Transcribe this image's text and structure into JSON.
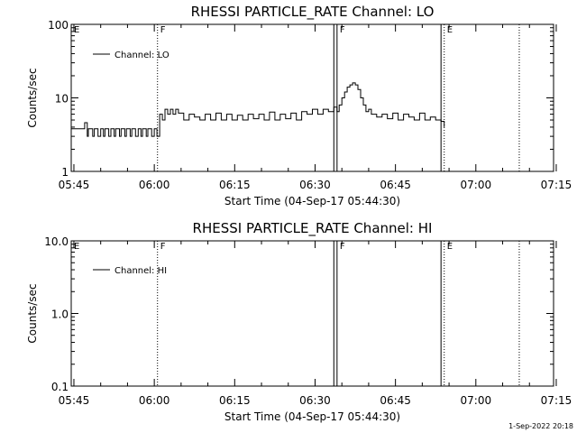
{
  "footer": {
    "timestamp": "1-Sep-2022 20:18"
  },
  "chart_data": [
    {
      "type": "line",
      "title": "RHESSI PARTICLE_RATE Channel: LO",
      "xlabel": "Start Time (04-Sep-17 05:44:30)",
      "ylabel": "Counts/sec",
      "yscale": "log",
      "ylim": [
        1,
        100
      ],
      "yticks": [
        1,
        10,
        100
      ],
      "ytick_labels": [
        "1",
        "10",
        "100"
      ],
      "xlim_minutes": [
        0,
        90
      ],
      "xticks_minutes": [
        0.5,
        15.5,
        30.5,
        45.5,
        60.5,
        75.5,
        90.5
      ],
      "xtick_labels": [
        "05:45",
        "06:00",
        "06:15",
        "06:30",
        "06:45",
        "07:00",
        "07:15"
      ],
      "legend": "Channel: LO",
      "legend_position": "top-left",
      "markers": [
        {
          "label": "E",
          "t_minutes": 0,
          "style": "dotted"
        },
        {
          "label": "F",
          "t_minutes": 16.1,
          "style": "dotted"
        },
        {
          "label": "",
          "t_minutes": 49.0,
          "style": "solid"
        },
        {
          "label": "F",
          "t_minutes": 49.6,
          "style": "solid"
        },
        {
          "label": "",
          "t_minutes": 69.0,
          "style": "solid"
        },
        {
          "label": "E",
          "t_minutes": 69.6,
          "style": "dotted"
        },
        {
          "label": "",
          "t_minutes": 83.6,
          "style": "dotted"
        }
      ],
      "series": [
        {
          "name": "Channel: LO",
          "x": [
            0,
            2,
            2.5,
            3,
            3.2,
            4,
            4.3,
            5,
            5.5,
            6,
            6.3,
            7,
            7.4,
            8,
            8.3,
            9,
            9.3,
            10,
            10.3,
            11,
            11.3,
            12,
            12.5,
            13,
            13.3,
            14,
            14.3,
            15,
            15.5,
            16,
            16.2,
            16.5,
            17,
            17.5,
            18,
            18.5,
            19,
            19.5,
            20,
            21,
            22,
            23,
            24,
            25,
            26,
            27,
            28,
            29,
            30,
            31,
            32,
            33,
            34,
            35,
            36,
            37,
            38,
            39,
            40,
            41,
            42,
            43,
            44,
            45,
            46,
            47,
            48,
            49,
            49.6,
            50,
            50.5,
            51,
            51.5,
            52,
            52.5,
            53,
            53.5,
            54,
            54.5,
            55,
            55.5,
            56,
            57,
            58,
            59,
            60,
            61,
            62,
            63,
            64,
            65,
            66,
            67,
            68,
            69,
            69.6
          ],
          "y": [
            3.8,
            3.8,
            4.6,
            3.0,
            3.8,
            3.0,
            3.8,
            3.0,
            3.8,
            3.0,
            3.8,
            3.0,
            3.8,
            3.0,
            3.8,
            3.0,
            3.8,
            3.0,
            3.8,
            3.0,
            3.8,
            3.0,
            3.8,
            3.0,
            3.8,
            3.0,
            3.8,
            3.0,
            3.8,
            3.0,
            3.0,
            6.0,
            5.0,
            7.0,
            6.0,
            7.0,
            6.0,
            7.0,
            6.2,
            5.0,
            6.0,
            5.5,
            5.0,
            6.0,
            5.0,
            6.2,
            5.0,
            6.0,
            5.0,
            5.8,
            5.0,
            6.0,
            5.2,
            6.0,
            5.0,
            6.4,
            5.0,
            6.0,
            5.2,
            6.2,
            5.0,
            6.5,
            6.0,
            7.0,
            6.0,
            7.0,
            6.5,
            7.5,
            6.5,
            8.0,
            10.0,
            12.0,
            14.0,
            15.0,
            16.0,
            15.0,
            13.0,
            10.0,
            8.0,
            6.5,
            7.0,
            6.0,
            5.5,
            6.0,
            5.2,
            6.2,
            5.0,
            6.0,
            5.5,
            5.0,
            6.2,
            5.0,
            5.5,
            5.0,
            4.8,
            4.0
          ]
        }
      ]
    },
    {
      "type": "line",
      "title": "RHESSI PARTICLE_RATE Channel: HI",
      "xlabel": "Start Time (04-Sep-17 05:44:30)",
      "ylabel": "Counts/sec",
      "yscale": "log",
      "ylim": [
        0.1,
        10
      ],
      "yticks": [
        0.1,
        1,
        10
      ],
      "ytick_labels": [
        "0.1",
        "1.0",
        "10.0"
      ],
      "xlim_minutes": [
        0,
        90
      ],
      "xticks_minutes": [
        0.5,
        15.5,
        30.5,
        45.5,
        60.5,
        75.5,
        90.5
      ],
      "xtick_labels": [
        "05:45",
        "06:00",
        "06:15",
        "06:30",
        "06:45",
        "07:00",
        "07:15"
      ],
      "legend": "Channel: HI",
      "legend_position": "top-left",
      "markers": [
        {
          "label": "E",
          "t_minutes": 0,
          "style": "dotted"
        },
        {
          "label": "F",
          "t_minutes": 16.1,
          "style": "dotted"
        },
        {
          "label": "",
          "t_minutes": 49.0,
          "style": "solid"
        },
        {
          "label": "F",
          "t_minutes": 49.6,
          "style": "solid"
        },
        {
          "label": "",
          "t_minutes": 69.0,
          "style": "solid"
        },
        {
          "label": "E",
          "t_minutes": 69.6,
          "style": "dotted"
        },
        {
          "label": "",
          "t_minutes": 83.6,
          "style": "dotted"
        }
      ],
      "series": [
        {
          "name": "Channel: HI",
          "x": [],
          "y": []
        }
      ]
    }
  ]
}
